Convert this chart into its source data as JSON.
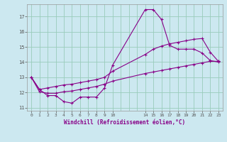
{
  "xlabel": "Windchill (Refroidissement éolien,°C)",
  "bg_color": "#cce8f0",
  "line_color": "#880088",
  "grid_color": "#99ccbb",
  "ylim": [
    10.8,
    17.8
  ],
  "xlim": [
    -0.5,
    23.5
  ],
  "yticks": [
    11,
    12,
    13,
    14,
    15,
    16,
    17
  ],
  "xticks": [
    0,
    1,
    2,
    3,
    4,
    5,
    6,
    7,
    8,
    9,
    10,
    14,
    15,
    16,
    17,
    18,
    19,
    20,
    21,
    22,
    23
  ],
  "line1_x": [
    0,
    1,
    2,
    3,
    4,
    5,
    6,
    7,
    8,
    9,
    10,
    14,
    15,
    16,
    17,
    18,
    19,
    20,
    21,
    22,
    23
  ],
  "line1_y": [
    13.0,
    12.2,
    11.8,
    11.8,
    11.4,
    11.3,
    11.7,
    11.7,
    11.7,
    12.3,
    13.8,
    17.45,
    17.45,
    16.8,
    15.1,
    14.85,
    14.85,
    14.85,
    14.6,
    14.1,
    14.0
  ],
  "line2_x": [
    0,
    1,
    2,
    3,
    4,
    5,
    6,
    7,
    8,
    9,
    10,
    14,
    15,
    16,
    17,
    18,
    19,
    20,
    21,
    22,
    23
  ],
  "line2_y": [
    13.0,
    12.2,
    12.3,
    12.4,
    12.5,
    12.55,
    12.65,
    12.75,
    12.85,
    13.0,
    13.4,
    14.5,
    14.85,
    15.05,
    15.2,
    15.3,
    15.4,
    15.5,
    15.55,
    14.65,
    14.05
  ],
  "line3_x": [
    0,
    1,
    2,
    3,
    4,
    5,
    6,
    7,
    8,
    9,
    10,
    14,
    15,
    16,
    17,
    18,
    19,
    20,
    21,
    22,
    23
  ],
  "line3_y": [
    13.0,
    12.05,
    11.95,
    11.95,
    12.05,
    12.1,
    12.2,
    12.3,
    12.4,
    12.55,
    12.75,
    13.25,
    13.35,
    13.45,
    13.55,
    13.65,
    13.75,
    13.85,
    13.95,
    14.05,
    14.05
  ]
}
